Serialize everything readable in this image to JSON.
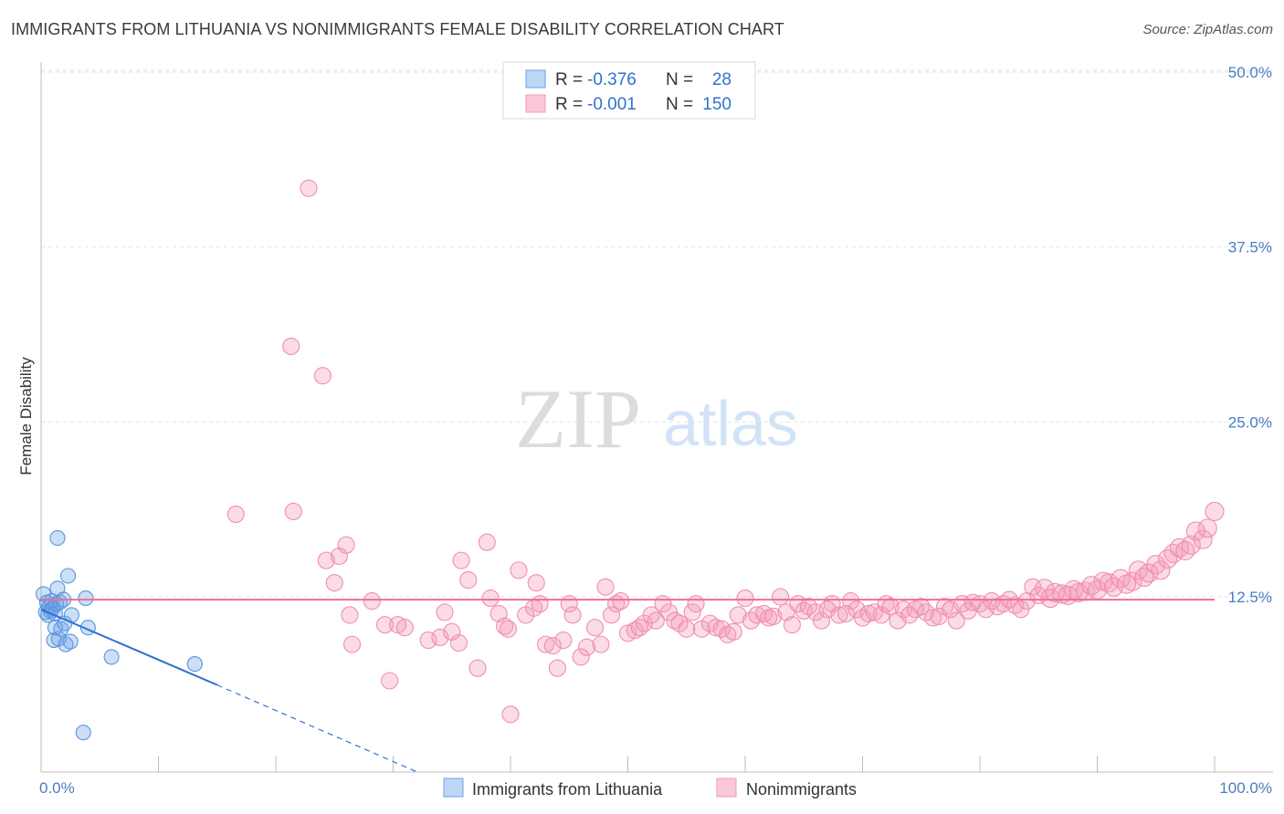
{
  "header": {
    "title": "IMMIGRANTS FROM LITHUANIA VS NONIMMIGRANTS FEMALE DISABILITY CORRELATION CHART",
    "source": "Source: ZipAtlas.com"
  },
  "watermark": {
    "zip": "ZIP",
    "atlas": "atlas"
  },
  "colors": {
    "blue": "#6aa3e8",
    "blue_line": "#2f72d0",
    "pink": "#f39ab8",
    "pink_line": "#ee6d97",
    "tick_text": "#4a7cc0"
  },
  "legend": [
    {
      "r_label": "R = ",
      "r_value": "-0.376",
      "n_label": "N = ",
      "n_value": "28"
    },
    {
      "r_label": "R = ",
      "r_value": "-0.001",
      "n_label": "N = ",
      "n_value": "150"
    }
  ],
  "chart_data": {
    "type": "scatter",
    "title": "IMMIGRANTS FROM LITHUANIA VS NONIMMIGRANTS FEMALE DISABILITY CORRELATION CHART",
    "xlabel": "",
    "ylabel": "Female Disability",
    "xlim": [
      0,
      100
    ],
    "ylim": [
      0,
      52
    ],
    "x_tick_labels": [
      "0.0%",
      "100.0%"
    ],
    "y_ticks": [
      12.5,
      25.0,
      37.5,
      50.0
    ],
    "y_tick_labels": [
      "12.5%",
      "25.0%",
      "37.5%",
      "50.0%"
    ],
    "grid": true,
    "legend_position": "bottom",
    "series": [
      {
        "name": "Immigrants from Lithuania",
        "color": "#6aa3e8",
        "r": -0.376,
        "n": 28,
        "trend": {
          "x0": 0,
          "y0": 11.6,
          "x1": 15,
          "y1": 6.2,
          "dashed_to_x": 32,
          "dashed_to_y": 0
        },
        "points": [
          [
            0.2,
            12.7
          ],
          [
            0.4,
            11.4
          ],
          [
            0.5,
            12.1
          ],
          [
            0.6,
            11.2
          ],
          [
            0.7,
            11.8
          ],
          [
            0.8,
            11.5
          ],
          [
            0.9,
            12.2
          ],
          [
            1.0,
            11.7
          ],
          [
            1.1,
            9.4
          ],
          [
            1.2,
            11.3
          ],
          [
            1.3,
            12.0
          ],
          [
            1.4,
            13.1
          ],
          [
            1.5,
            9.5
          ],
          [
            1.6,
            12.1
          ],
          [
            1.2,
            10.3
          ],
          [
            1.4,
            16.7
          ],
          [
            1.7,
            10.2
          ],
          [
            1.9,
            12.3
          ],
          [
            2.0,
            10.6
          ],
          [
            2.1,
            9.1
          ],
          [
            2.3,
            14.0
          ],
          [
            2.5,
            9.3
          ],
          [
            2.6,
            11.2
          ],
          [
            3.6,
            2.8
          ],
          [
            3.8,
            12.4
          ],
          [
            4.0,
            10.3
          ],
          [
            6.0,
            8.2
          ],
          [
            13.1,
            7.7
          ]
        ]
      },
      {
        "name": "Nonimmigrants",
        "color": "#f39ab8",
        "r": -0.001,
        "n": 150,
        "mean": 12.3,
        "points": [
          [
            22.8,
            41.7
          ],
          [
            21.3,
            30.4
          ],
          [
            24.0,
            28.3
          ],
          [
            16.6,
            18.4
          ],
          [
            21.5,
            18.6
          ],
          [
            24.3,
            15.1
          ],
          [
            26.0,
            16.2
          ],
          [
            25.4,
            15.4
          ],
          [
            25.0,
            13.5
          ],
          [
            26.3,
            11.2
          ],
          [
            28.2,
            12.2
          ],
          [
            26.5,
            9.1
          ],
          [
            29.3,
            10.5
          ],
          [
            30.4,
            10.5
          ],
          [
            31.0,
            10.3
          ],
          [
            29.7,
            6.5
          ],
          [
            33.0,
            9.4
          ],
          [
            34.0,
            9.6
          ],
          [
            34.4,
            11.4
          ],
          [
            35.6,
            9.2
          ],
          [
            35.0,
            10.0
          ],
          [
            35.8,
            15.1
          ],
          [
            36.4,
            13.7
          ],
          [
            37.2,
            7.4
          ],
          [
            38.0,
            16.4
          ],
          [
            38.3,
            12.4
          ],
          [
            39.0,
            11.3
          ],
          [
            39.5,
            10.4
          ],
          [
            40.0,
            4.1
          ],
          [
            39.8,
            10.2
          ],
          [
            40.7,
            14.4
          ],
          [
            41.3,
            11.2
          ],
          [
            42.0,
            11.7
          ],
          [
            42.2,
            13.5
          ],
          [
            42.5,
            12.0
          ],
          [
            43.0,
            9.1
          ],
          [
            43.6,
            9.0
          ],
          [
            44.0,
            7.4
          ],
          [
            44.5,
            9.4
          ],
          [
            45.3,
            11.2
          ],
          [
            45.0,
            12.0
          ],
          [
            46.0,
            8.2
          ],
          [
            46.5,
            8.9
          ],
          [
            47.2,
            10.3
          ],
          [
            47.7,
            9.1
          ],
          [
            48.1,
            13.2
          ],
          [
            48.6,
            11.2
          ],
          [
            49.0,
            12.0
          ],
          [
            49.4,
            12.2
          ],
          [
            50.0,
            9.9
          ],
          [
            50.6,
            10.1
          ],
          [
            51.0,
            10.3
          ],
          [
            51.4,
            10.6
          ],
          [
            52.0,
            11.2
          ],
          [
            52.4,
            10.8
          ],
          [
            53.0,
            12.0
          ],
          [
            53.5,
            11.4
          ],
          [
            54.0,
            10.8
          ],
          [
            54.4,
            10.6
          ],
          [
            55.0,
            10.2
          ],
          [
            55.5,
            11.4
          ],
          [
            55.8,
            12.0
          ],
          [
            56.3,
            10.2
          ],
          [
            57.0,
            10.6
          ],
          [
            57.5,
            10.3
          ],
          [
            58.0,
            10.2
          ],
          [
            58.5,
            9.8
          ],
          [
            59.0,
            10.0
          ],
          [
            59.4,
            11.2
          ],
          [
            60.0,
            12.4
          ],
          [
            60.5,
            10.8
          ],
          [
            61.0,
            11.2
          ],
          [
            61.6,
            11.3
          ],
          [
            62.0,
            11.0
          ],
          [
            62.4,
            11.1
          ],
          [
            63.0,
            12.5
          ],
          [
            63.5,
            11.4
          ],
          [
            64.0,
            10.5
          ],
          [
            64.5,
            12.0
          ],
          [
            65.0,
            11.5
          ],
          [
            65.4,
            11.8
          ],
          [
            66.0,
            11.4
          ],
          [
            66.5,
            10.8
          ],
          [
            67.0,
            11.6
          ],
          [
            67.4,
            12.0
          ],
          [
            68.0,
            11.2
          ],
          [
            68.6,
            11.3
          ],
          [
            69.0,
            12.2
          ],
          [
            69.5,
            11.6
          ],
          [
            70.0,
            11.0
          ],
          [
            70.5,
            11.3
          ],
          [
            71.0,
            11.4
          ],
          [
            71.6,
            11.2
          ],
          [
            72.0,
            12.0
          ],
          [
            72.4,
            11.8
          ],
          [
            73.0,
            10.8
          ],
          [
            73.5,
            11.6
          ],
          [
            74.0,
            11.2
          ],
          [
            74.5,
            11.6
          ],
          [
            75.0,
            11.8
          ],
          [
            75.4,
            11.4
          ],
          [
            76.0,
            11.0
          ],
          [
            76.5,
            11.1
          ],
          [
            77.0,
            11.8
          ],
          [
            77.5,
            11.6
          ],
          [
            78.0,
            10.8
          ],
          [
            78.5,
            12.0
          ],
          [
            79.0,
            11.5
          ],
          [
            79.4,
            12.1
          ],
          [
            80.0,
            12.0
          ],
          [
            80.5,
            11.6
          ],
          [
            81.0,
            12.2
          ],
          [
            81.5,
            11.8
          ],
          [
            82.0,
            12.0
          ],
          [
            82.5,
            12.3
          ],
          [
            83.0,
            11.9
          ],
          [
            83.5,
            11.6
          ],
          [
            84.0,
            12.2
          ],
          [
            84.5,
            13.2
          ],
          [
            85.0,
            12.6
          ],
          [
            85.5,
            13.1
          ],
          [
            86.0,
            12.4
          ],
          [
            86.4,
            12.8
          ],
          [
            87.0,
            12.7
          ],
          [
            87.5,
            12.6
          ],
          [
            88.0,
            13.0
          ],
          [
            88.4,
            12.8
          ],
          [
            89.0,
            12.9
          ],
          [
            89.5,
            13.3
          ],
          [
            90.0,
            13.0
          ],
          [
            90.5,
            13.6
          ],
          [
            91.0,
            13.5
          ],
          [
            91.4,
            13.2
          ],
          [
            92.0,
            13.8
          ],
          [
            92.5,
            13.4
          ],
          [
            93.0,
            13.6
          ],
          [
            93.5,
            14.4
          ],
          [
            94.0,
            13.9
          ],
          [
            94.4,
            14.2
          ],
          [
            95.0,
            14.8
          ],
          [
            95.4,
            14.4
          ],
          [
            96.0,
            15.2
          ],
          [
            96.5,
            15.6
          ],
          [
            97.0,
            16.0
          ],
          [
            97.5,
            15.8
          ],
          [
            98.0,
            16.2
          ],
          [
            98.4,
            17.2
          ],
          [
            99.0,
            16.6
          ],
          [
            99.4,
            17.4
          ],
          [
            100.0,
            18.6
          ]
        ]
      }
    ]
  }
}
